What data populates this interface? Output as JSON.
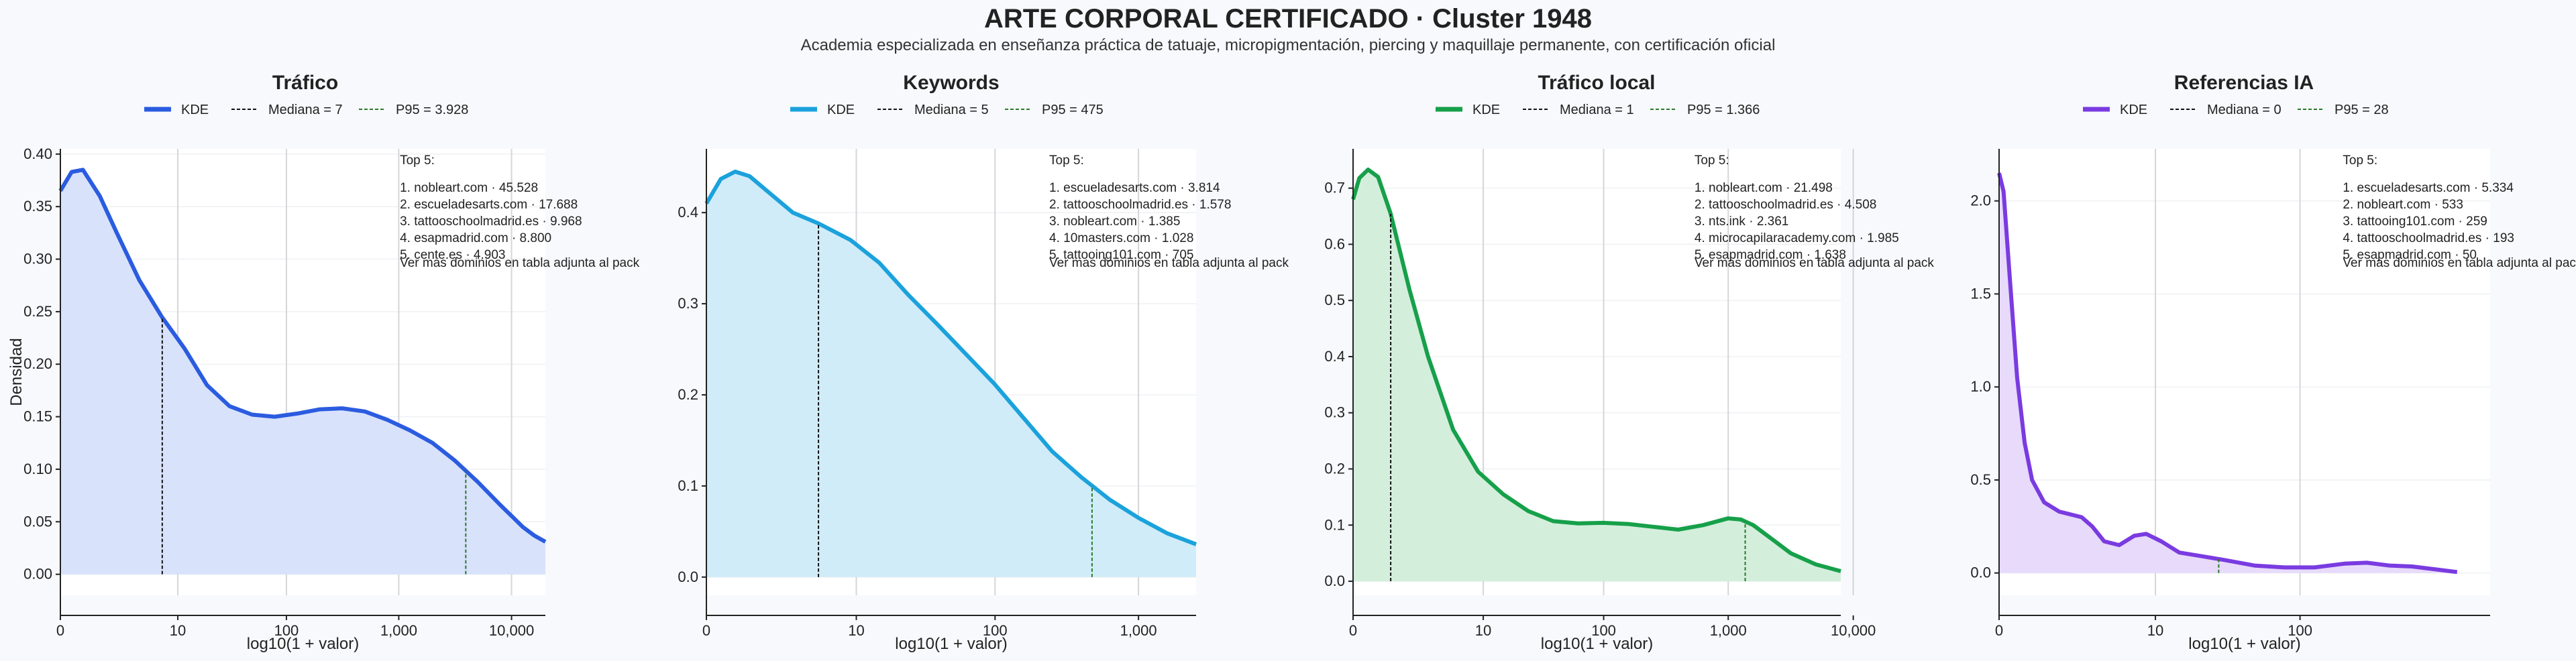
{
  "header": {
    "title": "ARTE CORPORAL CERTIFICADO · Cluster 1948",
    "subtitle": "Academia especializada en enseñanza práctica de tatuaje, micropigmentación, piercing y maquillaje permanente, con certificación oficial"
  },
  "shared": {
    "xlabel": "log10(1 + valor)",
    "ylabel": "Densidad",
    "legend_kde": "KDE",
    "note": "Ver mas dominios en tabla adjunta al pack",
    "top_header": "Top 5:"
  },
  "chart_data": [
    {
      "type": "area",
      "title": "Tráfico",
      "color": "#2b5ce0",
      "fill": "#d8e2fa",
      "median_label": "Mediana = 7",
      "p95_label": "P95 = 3.928",
      "median": 7,
      "p95": 3928,
      "xmax_log": 3.4,
      "ylim": [
        -0.02,
        0.405
      ],
      "yticks": [
        0,
        0.05,
        0.1,
        0.15,
        0.2,
        0.25,
        0.3,
        0.35,
        0.4
      ],
      "ytick_labels": [
        "0.00",
        "0.05",
        "0.10",
        "0.15",
        "0.20",
        "0.25",
        "0.30",
        "0.35",
        "0.40"
      ],
      "xticks": [
        0,
        1.041,
        2.004,
        3.0,
        4.0
      ],
      "xtick_labels": [
        "0",
        "10",
        "100",
        "1,000",
        "10,000"
      ],
      "curve": [
        [
          0,
          0.365
        ],
        [
          0.1,
          0.383
        ],
        [
          0.2,
          0.385
        ],
        [
          0.35,
          0.36
        ],
        [
          0.5,
          0.325
        ],
        [
          0.7,
          0.28
        ],
        [
          0.9,
          0.245
        ],
        [
          1.1,
          0.215
        ],
        [
          1.3,
          0.18
        ],
        [
          1.5,
          0.16
        ],
        [
          1.7,
          0.152
        ],
        [
          1.9,
          0.15
        ],
        [
          2.1,
          0.153
        ],
        [
          2.3,
          0.157
        ],
        [
          2.5,
          0.158
        ],
        [
          2.7,
          0.155
        ],
        [
          2.9,
          0.147
        ],
        [
          3.1,
          0.137
        ],
        [
          3.3,
          0.125
        ],
        [
          3.5,
          0.108
        ],
        [
          3.7,
          0.088
        ],
        [
          3.9,
          0.066
        ],
        [
          4.1,
          0.045
        ],
        [
          4.2,
          0.037
        ],
        [
          4.3,
          0.031
        ]
      ],
      "top5": [
        "1. nobleart.com · 45.528",
        "2. escueladesarts.com · 17.688",
        "3. tattooschoolmadrid.es · 9.968",
        "4. esapmadrid.com · 8.800",
        "5. cente.es · 4.903"
      ]
    },
    {
      "type": "area",
      "title": "Keywords",
      "color": "#1ba2dc",
      "fill": "#d0ecf8",
      "median_label": "Mediana = 5",
      "p95_label": "P95 = 475",
      "median": 5,
      "p95": 475,
      "ylim": [
        -0.02,
        0.47
      ],
      "yticks": [
        0,
        0.1,
        0.2,
        0.3,
        0.4
      ],
      "ytick_labels": [
        "0.0",
        "0.1",
        "0.2",
        "0.3",
        "0.4"
      ],
      "xticks": [
        0,
        1.041,
        2.004,
        3.0
      ],
      "xtick_labels": [
        "0",
        "10",
        "100",
        "1,000"
      ],
      "curve": [
        [
          0,
          0.41
        ],
        [
          0.1,
          0.437
        ],
        [
          0.2,
          0.445
        ],
        [
          0.3,
          0.44
        ],
        [
          0.45,
          0.42
        ],
        [
          0.6,
          0.4
        ],
        [
          0.78,
          0.388
        ],
        [
          1.0,
          0.37
        ],
        [
          1.2,
          0.345
        ],
        [
          1.4,
          0.31
        ],
        [
          1.6,
          0.278
        ],
        [
          1.8,
          0.245
        ],
        [
          2.0,
          0.212
        ],
        [
          2.2,
          0.175
        ],
        [
          2.4,
          0.138
        ],
        [
          2.6,
          0.11
        ],
        [
          2.8,
          0.085
        ],
        [
          3.0,
          0.065
        ],
        [
          3.2,
          0.048
        ],
        [
          3.4,
          0.036
        ]
      ],
      "top5": [
        "1. escueladesarts.com · 3.814",
        "2. tattooschoolmadrid.es · 1.578",
        "3. nobleart.com · 1.385",
        "4. 10masters.com · 1.028",
        "5. tattooing101.com · 705"
      ]
    },
    {
      "type": "area",
      "title": "Tráfico local",
      "color": "#16a04a",
      "fill": "#d4eedc",
      "median_label": "Mediana = 1",
      "p95_label": "P95 = 1.366",
      "median": 1,
      "p95": 1366,
      "ylim": [
        -0.025,
        0.77
      ],
      "yticks": [
        0,
        0.1,
        0.2,
        0.3,
        0.4,
        0.5,
        0.6,
        0.7
      ],
      "ytick_labels": [
        "0.0",
        "0.1",
        "0.2",
        "0.3",
        "0.4",
        "0.5",
        "0.6",
        "0.7"
      ],
      "xticks": [
        0,
        1.041,
        2.004,
        3.0,
        4.0
      ],
      "xtick_labels": [
        "0",
        "10",
        "100",
        "1,000",
        "10,000"
      ],
      "curve": [
        [
          0,
          0.68
        ],
        [
          0.05,
          0.718
        ],
        [
          0.12,
          0.733
        ],
        [
          0.2,
          0.72
        ],
        [
          0.3,
          0.655
        ],
        [
          0.45,
          0.52
        ],
        [
          0.6,
          0.4
        ],
        [
          0.8,
          0.27
        ],
        [
          1.0,
          0.195
        ],
        [
          1.2,
          0.155
        ],
        [
          1.4,
          0.125
        ],
        [
          1.6,
          0.107
        ],
        [
          1.8,
          0.103
        ],
        [
          2.0,
          0.104
        ],
        [
          2.2,
          0.102
        ],
        [
          2.4,
          0.097
        ],
        [
          2.6,
          0.092
        ],
        [
          2.8,
          0.1
        ],
        [
          3.0,
          0.112
        ],
        [
          3.1,
          0.11
        ],
        [
          3.2,
          0.1
        ],
        [
          3.35,
          0.075
        ],
        [
          3.5,
          0.05
        ],
        [
          3.7,
          0.03
        ],
        [
          3.9,
          0.018
        ]
      ],
      "top5": [
        "1. nobleart.com · 21.498",
        "2. tattooschoolmadrid.es · 4.508",
        "3. nts.ink · 2.361",
        "4. microcapilaracademy.com · 1.985",
        "5. esapmadrid.com · 1.638"
      ]
    },
    {
      "type": "area",
      "title": "Referencias IA",
      "color": "#7a3be0",
      "fill": "#e7dafa",
      "median_label": "Mediana = 0",
      "p95_label": "P95 = 28",
      "median": 0,
      "p95": 28,
      "ylim": [
        -0.12,
        2.28
      ],
      "yticks": [
        0,
        0.5,
        1.0,
        1.5,
        2.0
      ],
      "ytick_labels": [
        "0.0",
        "0.5",
        "1.0",
        "1.5",
        "2.0"
      ],
      "xticks": [
        0,
        1.041,
        2.004
      ],
      "xtick_labels": [
        "0",
        "10",
        "100"
      ],
      "curve": [
        [
          0,
          2.15
        ],
        [
          0.03,
          2.05
        ],
        [
          0.07,
          1.6
        ],
        [
          0.12,
          1.05
        ],
        [
          0.17,
          0.7
        ],
        [
          0.22,
          0.5
        ],
        [
          0.3,
          0.38
        ],
        [
          0.4,
          0.33
        ],
        [
          0.55,
          0.3
        ],
        [
          0.62,
          0.25
        ],
        [
          0.7,
          0.17
        ],
        [
          0.8,
          0.15
        ],
        [
          0.9,
          0.2
        ],
        [
          0.98,
          0.21
        ],
        [
          1.08,
          0.17
        ],
        [
          1.2,
          0.11
        ],
        [
          1.35,
          0.09
        ],
        [
          1.5,
          0.07
        ],
        [
          1.7,
          0.04
        ],
        [
          1.9,
          0.03
        ],
        [
          2.1,
          0.03
        ],
        [
          2.3,
          0.05
        ],
        [
          2.45,
          0.055
        ],
        [
          2.6,
          0.04
        ],
        [
          2.75,
          0.035
        ],
        [
          2.9,
          0.02
        ],
        [
          3.05,
          0.005
        ]
      ],
      "top5": [
        "1. escueladesarts.com · 5.334",
        "2. nobleart.com · 533",
        "3. tattooing101.com · 259",
        "4. tattooschoolmadrid.es · 193",
        "5. esapmadrid.com · 50"
      ]
    }
  ]
}
